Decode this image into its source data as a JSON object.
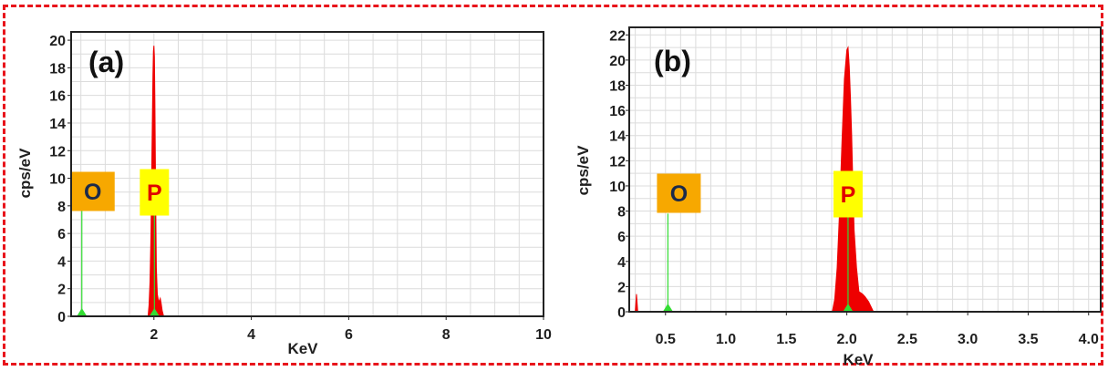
{
  "colors": {
    "frame": "#e8141b",
    "spectrum": "#ee0000",
    "marker": "#33dd33",
    "grid": "#dcdcdc",
    "oxygen_box": "#f7a800",
    "oxygen_text": "#1b2a4a",
    "phosphorus_box": "#ffff00",
    "phosphorus_text": "#e00000"
  },
  "chart_data": [
    {
      "type": "area",
      "panel_label": "(a)",
      "xlabel": "KeV",
      "ylabel": "cps/eV",
      "xlim": [
        0.3,
        10.0
      ],
      "ylim": [
        0,
        20.6
      ],
      "x_ticks": [
        2,
        4,
        6,
        8,
        10
      ],
      "x_tick_labels": [
        "2",
        "4",
        "6",
        "8",
        "10"
      ],
      "y_ticks": [
        0,
        2,
        4,
        6,
        8,
        10,
        12,
        14,
        16,
        18,
        20
      ],
      "y_tick_labels": [
        "0",
        "2",
        "4",
        "6",
        "8",
        "10",
        "12",
        "14",
        "16",
        "18",
        "20"
      ],
      "grid": true,
      "series": [
        {
          "x": [
            1.88,
            1.9,
            1.92,
            1.94,
            1.96,
            1.98,
            1.99,
            2.0,
            2.01,
            2.02,
            2.03,
            2.04,
            2.05,
            2.07,
            2.1,
            2.13,
            2.15,
            2.17,
            2.2
          ],
          "y": [
            0,
            0.8,
            2.5,
            6.0,
            12.0,
            17.5,
            19.2,
            19.6,
            18.8,
            15.5,
            11.0,
            7.0,
            3.5,
            1.6,
            1.0,
            1.3,
            0.9,
            0.4,
            0
          ]
        }
      ],
      "markers": [
        {
          "element": "O",
          "energy": 0.52,
          "height": 8
        },
        {
          "element": "P",
          "energy": 2.01,
          "height": 8
        }
      ]
    },
    {
      "type": "area",
      "panel_label": "(b)",
      "xlabel": "KeV",
      "ylabel": "cps/eV",
      "xlim": [
        0.2,
        4.1
      ],
      "ylim": [
        0,
        22.6
      ],
      "x_ticks": [
        0.5,
        1.0,
        1.5,
        2.0,
        2.5,
        3.0,
        3.5,
        4.0
      ],
      "x_tick_labels": [
        "0.5",
        "1.0",
        "1.5",
        "2.0",
        "2.5",
        "3.0",
        "3.5",
        "4.0"
      ],
      "y_ticks": [
        0,
        2,
        4,
        6,
        8,
        10,
        12,
        14,
        16,
        18,
        20,
        22
      ],
      "y_tick_labels": [
        "0",
        "2",
        "4",
        "6",
        "8",
        "10",
        "12",
        "14",
        "16",
        "18",
        "20",
        "22"
      ],
      "grid": true,
      "series": [
        {
          "x": [
            1.88,
            1.9,
            1.92,
            1.94,
            1.96,
            1.98,
            2.0,
            2.01,
            2.02,
            2.03,
            2.04,
            2.05,
            2.06,
            2.08,
            2.1,
            2.13,
            2.15,
            2.18,
            2.2,
            2.22
          ],
          "y": [
            0,
            1.0,
            3.5,
            8.0,
            13.5,
            18.5,
            20.8,
            21.0,
            19.5,
            17.0,
            14.0,
            10.0,
            6.5,
            3.5,
            1.6,
            1.4,
            1.2,
            0.8,
            0.4,
            0
          ]
        },
        {
          "x": [
            0.25,
            0.26,
            0.27
          ],
          "y": [
            0,
            1.4,
            0
          ]
        }
      ],
      "markers": [
        {
          "element": "O",
          "energy": 0.52,
          "height": 7.8
        },
        {
          "element": "P",
          "energy": 2.01,
          "height": 7.8
        }
      ]
    }
  ]
}
